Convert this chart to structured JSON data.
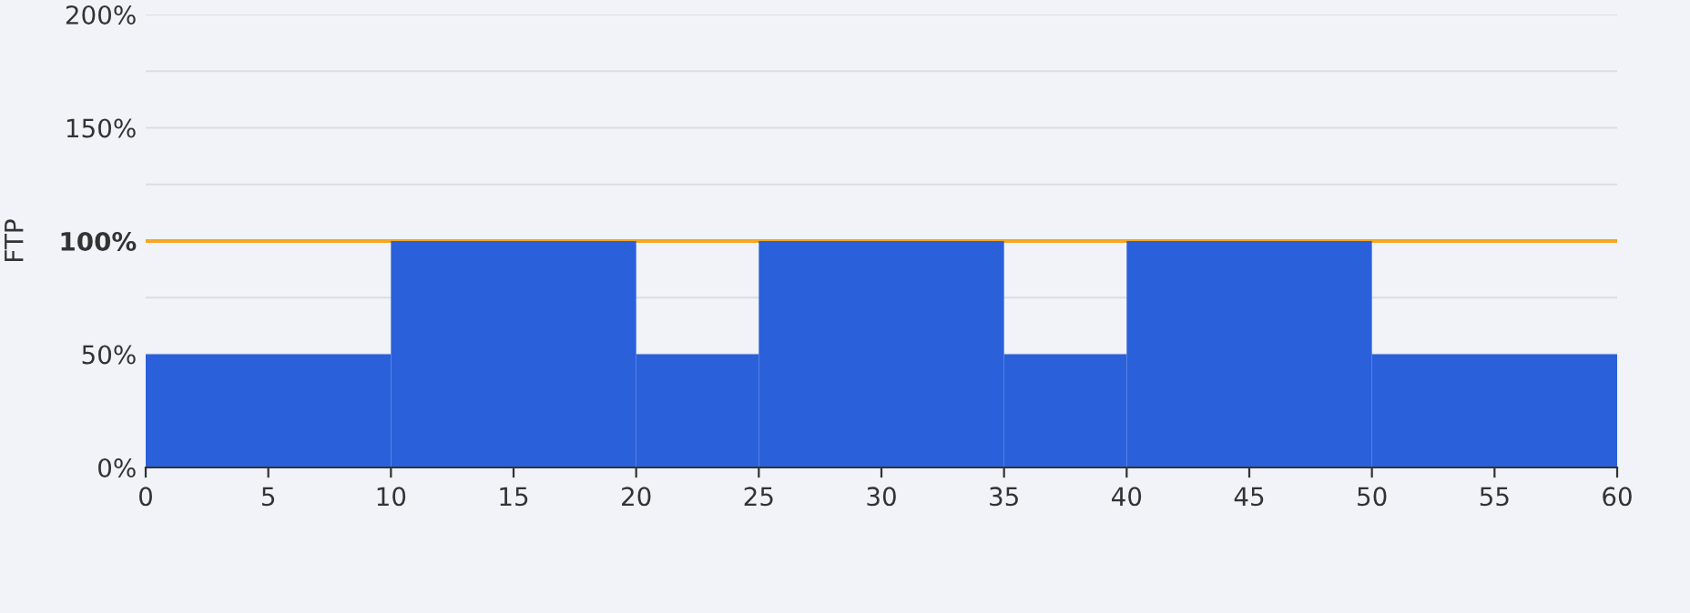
{
  "chart_data": {
    "type": "histogram",
    "ylabel": "FTP",
    "bins": [
      0,
      10,
      20,
      25,
      35,
      40,
      50,
      60
    ],
    "values": [
      50,
      100,
      50,
      100,
      50,
      100,
      50
    ],
    "color": "#2a60da",
    "xlim": [
      0,
      60
    ],
    "xticks": [
      0,
      5,
      10,
      15,
      20,
      25,
      30,
      35,
      40,
      45,
      50,
      55,
      60
    ],
    "ylim": [
      0,
      200
    ],
    "yticks": [
      {
        "value": 0,
        "label": "0%"
      },
      {
        "value": 50,
        "label": "50%"
      },
      {
        "value": 75,
        "label": null
      },
      {
        "value": 100,
        "label": "100%"
      },
      {
        "value": 125,
        "label": null
      },
      {
        "value": 150,
        "label": "150%"
      },
      {
        "value": 175,
        "label": null
      },
      {
        "value": 200,
        "label": "200%"
      }
    ],
    "ref_lines": [
      {
        "axis": "y",
        "value": 100,
        "color": "#f5a623"
      }
    ],
    "grid": "y"
  }
}
